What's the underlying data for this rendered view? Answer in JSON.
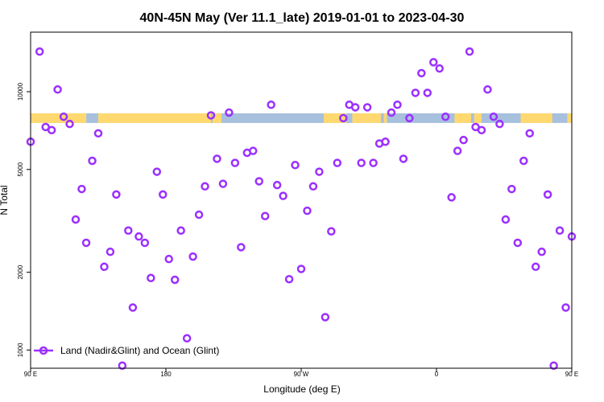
{
  "chart_data": {
    "type": "scatter",
    "title": "40N-45N May (Ver 11.1_late)   2019-01-01 to 2023-04-30",
    "xlabel": "Longitude (deg E)",
    "ylabel": "N Total",
    "x_scale": "longitude",
    "y_scale": "log",
    "xlim": [
      90,
      450
    ],
    "ylim": [
      850,
      17000
    ],
    "x_ticks": [
      {
        "value": 90,
        "label": "90 E"
      },
      {
        "value": 180,
        "label": "180"
      },
      {
        "value": 270,
        "label": "90 W"
      },
      {
        "value": 360,
        "label": "0"
      },
      {
        "value": 450,
        "label": "90 E"
      },
      {
        "value": 540,
        "label": "180"
      }
    ],
    "y_ticks": [
      {
        "value": 1000,
        "label": "1000"
      },
      {
        "value": 2000,
        "label": "2000"
      },
      {
        "value": 5000,
        "label": "5000"
      },
      {
        "value": 10000,
        "label": "10000"
      }
    ],
    "grid": false,
    "legend_position": "bottom-left",
    "map_band": {
      "value": 7900,
      "land_color": "#FFD970",
      "ocean_color": "#A7C0DE",
      "land_ranges": [
        [
          90,
          127
        ],
        [
          135,
          210
        ],
        [
          211,
          217
        ],
        [
          285,
          300
        ],
        [
          304,
          323
        ],
        [
          325,
          327
        ],
        [
          372,
          383
        ],
        [
          385,
          390
        ],
        [
          416,
          437
        ],
        [
          447,
          450
        ]
      ]
    },
    "series": [
      {
        "name": "Land (Nadir&Glint) and Ocean (Glint)",
        "color": "#9B30FF",
        "x": [
          90,
          96,
          100,
          104,
          108,
          112,
          116,
          120,
          124,
          127,
          131,
          135,
          139,
          143,
          147,
          151,
          155,
          158,
          162,
          166,
          170,
          174,
          178,
          182,
          186,
          190,
          194,
          198,
          202,
          206,
          210,
          214,
          218,
          222,
          226,
          230,
          234,
          238,
          242,
          246,
          250,
          254,
          258,
          262,
          266,
          270,
          274,
          278,
          282,
          286,
          290,
          294,
          298,
          302,
          306,
          310,
          314,
          318,
          322,
          326,
          330,
          334,
          338,
          342,
          346,
          350,
          354,
          358,
          362,
          366,
          370,
          374,
          378,
          382,
          386,
          390,
          394,
          398,
          402,
          406,
          410,
          414,
          418,
          422,
          426,
          430,
          434,
          438,
          442,
          446,
          450
        ],
        "y": [
          6400,
          14300,
          7300,
          7100,
          10200,
          8000,
          7500,
          3200,
          4200,
          2600,
          5400,
          6900,
          2100,
          2400,
          4000,
          870,
          2900,
          1460,
          2750,
          2600,
          1900,
          4900,
          4000,
          2250,
          1870,
          2900,
          1110,
          2300,
          3340,
          4300,
          8100,
          5500,
          4400,
          8300,
          5300,
          2500,
          5800,
          5900,
          4500,
          3300,
          8900,
          4350,
          3950,
          1880,
          5200,
          2060,
          3460,
          4300,
          4900,
          1340,
          2880,
          5300,
          7900,
          8900,
          8700,
          5300,
          8700,
          5300,
          6300,
          6400,
          8300,
          8900,
          5500,
          7900,
          9900,
          11800,
          9900,
          13000,
          12300,
          8000,
          3900,
          5900,
          6500,
          14300,
          7300,
          7100,
          10200,
          8000,
          7500,
          3200,
          4200,
          2600,
          5400,
          6900,
          2100,
          2400,
          4000,
          870,
          2900,
          1460,
          2750
        ]
      }
    ]
  }
}
